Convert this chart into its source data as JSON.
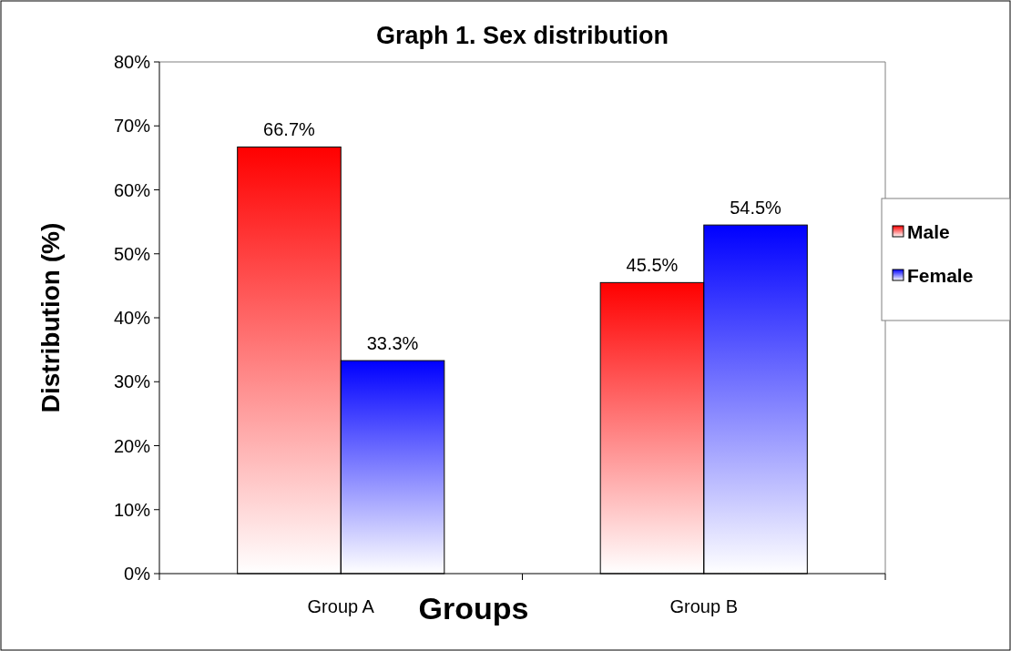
{
  "chart_data": {
    "type": "bar",
    "title": "Graph 1. Sex distribution",
    "xlabel": "Groups",
    "ylabel": "Distribution (%)",
    "categories": [
      "Group A",
      "Group B"
    ],
    "series": [
      {
        "name": "Male",
        "color": "#ff0000",
        "values": [
          66.7,
          45.5
        ],
        "value_labels": [
          "66.7%",
          "45.5%"
        ]
      },
      {
        "name": "Female",
        "color": "#0000ff",
        "values": [
          33.3,
          54.5
        ],
        "value_labels": [
          "33.3%",
          "54.5%"
        ]
      }
    ],
    "ylim": [
      0,
      80
    ],
    "yticks": [
      {
        "value": 0,
        "label": "0%"
      },
      {
        "value": 10,
        "label": "10%"
      },
      {
        "value": 20,
        "label": "20%"
      },
      {
        "value": 30,
        "label": "30%"
      },
      {
        "value": 40,
        "label": "40%"
      },
      {
        "value": 50,
        "label": "50%"
      },
      {
        "value": 60,
        "label": "60%"
      },
      {
        "value": 70,
        "label": "70%"
      },
      {
        "value": 80,
        "label": "80%"
      }
    ],
    "grid": false,
    "legend": "right"
  }
}
